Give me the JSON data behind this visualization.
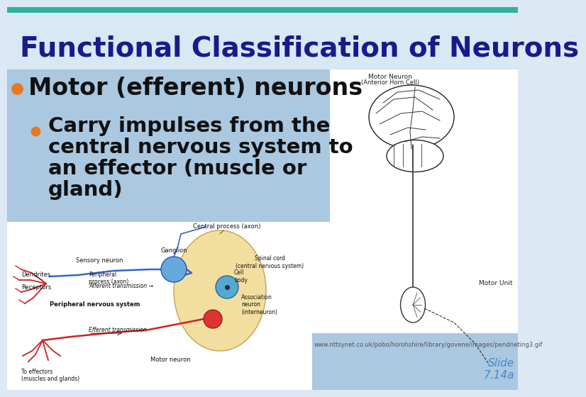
{
  "title": "Functional Classification of Neurons",
  "title_color": "#1a1a8c",
  "title_fontsize": 28,
  "bg_top_color": "#dce9f5",
  "bg_bottom_color": "#ffffff",
  "header_bar_color": "#2db3a0",
  "bullet1_text": "Motor (efferent) neurons",
  "bullet1_fontsize": 24,
  "bullet1_dot_color": "#e87722",
  "bullet2_lines": [
    "Carry impulses from the",
    "central nervous system to",
    "an effector (muscle or",
    "gland)"
  ],
  "bullet2_fontsize": 21,
  "bullet2_dot_color": "#e87722",
  "text_box_bg": "#aac8e0",
  "url_text": "www.nttsynet.co.uk/pobo/horohshire/library/govene/images/pendneting3.gif",
  "url_color": "#555555",
  "url_fontsize": 6,
  "slide_text": "Slide\n7.14a",
  "slide_color": "#4488cc",
  "slide_fontsize": 11,
  "footer_bg": "#aac8e0",
  "diagram_bg": "#ffffff",
  "right_bg": "#ffffff"
}
